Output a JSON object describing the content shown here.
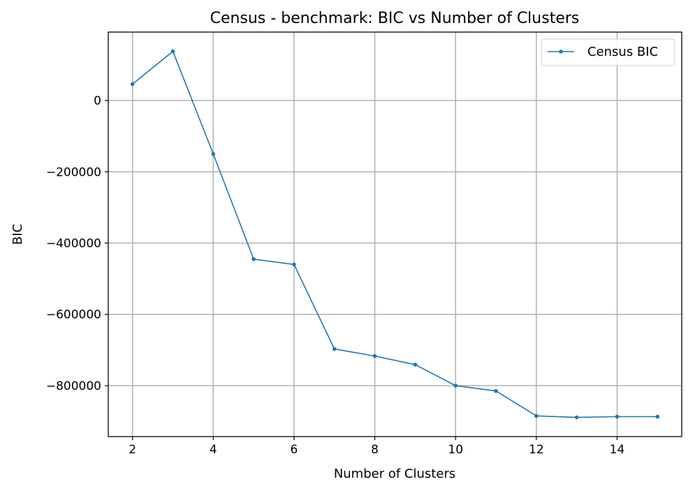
{
  "chart_data": {
    "type": "line",
    "title": "Census - benchmark: BIC vs Number of Clusters",
    "xlabel": "Number of Clusters",
    "ylabel": "BIC",
    "xlim": [
      1.4,
      15.6
    ],
    "ylim": [
      -943000,
      192000
    ],
    "grid": true,
    "legend_position": "top-right",
    "x_ticks": [
      2,
      4,
      6,
      8,
      10,
      12,
      14
    ],
    "x_tick_labels": [
      "2",
      "4",
      "6",
      "8",
      "10",
      "12",
      "14"
    ],
    "y_ticks": [
      0,
      -200000,
      -400000,
      -600000,
      -800000
    ],
    "y_tick_labels": [
      "0",
      "−200000",
      "−400000",
      "−600000",
      "−800000"
    ],
    "x": [
      2,
      3,
      4,
      5,
      6,
      7,
      8,
      9,
      10,
      11,
      12,
      13,
      14,
      15
    ],
    "series": [
      {
        "name": "Census BIC",
        "color": "#1f77b4",
        "values": [
          46000,
          138000,
          -150000,
          -445000,
          -460000,
          -697000,
          -717000,
          -741000,
          -800000,
          -815000,
          -885000,
          -889000,
          -887000,
          -887000
        ]
      }
    ]
  }
}
